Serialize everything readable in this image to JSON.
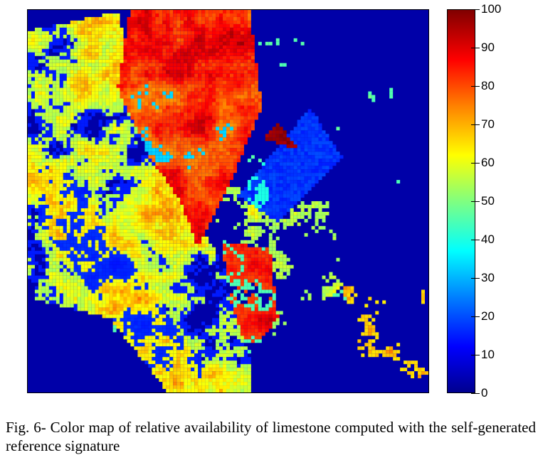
{
  "figure": {
    "caption": "Fig. 6- Color map of relative availability of limestone computed with the self-generated reference signature"
  },
  "chart_data": {
    "type": "heatmap",
    "title": "",
    "xlabel": "",
    "ylabel": "",
    "colormap": "jet",
    "color_range": [
      0,
      100
    ],
    "colorbar_ticks": [
      0,
      10,
      20,
      30,
      40,
      50,
      60,
      70,
      80,
      90,
      100
    ],
    "colorbar_tick_labels": [
      "0",
      "10",
      "20",
      "30",
      "40",
      "50",
      "60",
      "70",
      "80",
      "90",
      "100"
    ],
    "background_value": 5
  }
}
